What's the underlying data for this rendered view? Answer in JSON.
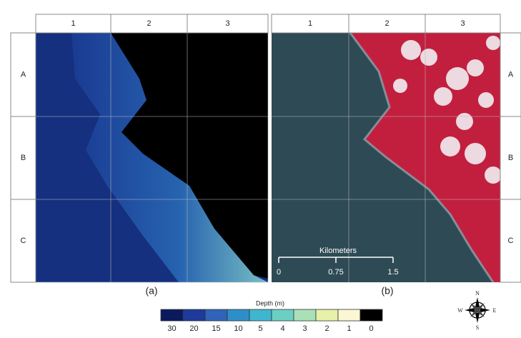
{
  "panel_a": {
    "columns": [
      "1",
      "2",
      "3"
    ],
    "rows": [
      "A",
      "B",
      "C"
    ],
    "caption": "(a)"
  },
  "panel_b": {
    "columns": [
      "1",
      "2",
      "3"
    ],
    "rows": [
      "A",
      "B",
      "C"
    ],
    "caption": "(b)",
    "scale_bar": {
      "title": "Kilometers",
      "labels": [
        "0",
        "0.75",
        "1.5"
      ]
    }
  },
  "legend": {
    "title": "Depth (m)",
    "items": [
      {
        "label": "30",
        "color": "#0b1a5c"
      },
      {
        "label": "20",
        "color": "#1e3a9a"
      },
      {
        "label": "15",
        "color": "#2f64b8"
      },
      {
        "label": "10",
        "color": "#2e8fc8"
      },
      {
        "label": "5",
        "color": "#3fb6d0"
      },
      {
        "label": "4",
        "color": "#6ccfc4"
      },
      {
        "label": "3",
        "color": "#a9e0b8"
      },
      {
        "label": "2",
        "color": "#e6f0a8"
      },
      {
        "label": "1",
        "color": "#fbf6d4"
      },
      {
        "label": "0",
        "color": "#000000"
      }
    ]
  },
  "compass": {
    "n": "N",
    "s": "S",
    "e": "E",
    "w": "W"
  }
}
